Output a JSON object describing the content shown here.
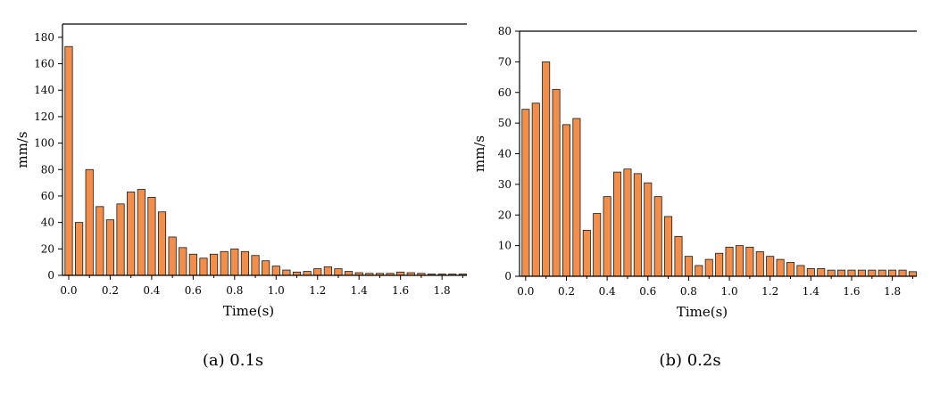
{
  "captions": [
    "(a) 0.1s",
    "(b) 0.2s"
  ],
  "colors": {
    "bar_fill": "#F28E49",
    "bar_stroke": "#1a1a1a",
    "axis": "#000000"
  },
  "chart_data": [
    {
      "type": "bar",
      "xlabel": "Time(s)",
      "ylabel": "mm/s",
      "ylim": [
        0,
        190
      ],
      "xlim": [
        -0.03,
        1.92
      ],
      "yticks": [
        0,
        20,
        40,
        60,
        80,
        100,
        120,
        140,
        160,
        180
      ],
      "xticks": [
        "0.0",
        "0.2",
        "0.4",
        "0.6",
        "0.8",
        "1.0",
        "1.2",
        "1.4",
        "1.6",
        "1.8"
      ],
      "bar_width": 0.036,
      "x": [
        0.0,
        0.05,
        0.1,
        0.15,
        0.2,
        0.25,
        0.3,
        0.35,
        0.4,
        0.45,
        0.5,
        0.55,
        0.6,
        0.65,
        0.7,
        0.75,
        0.8,
        0.85,
        0.9,
        0.95,
        1.0,
        1.05,
        1.1,
        1.15,
        1.2,
        1.25,
        1.3,
        1.35,
        1.4,
        1.45,
        1.5,
        1.55,
        1.6,
        1.65,
        1.7,
        1.75,
        1.8,
        1.85,
        1.9
      ],
      "values": [
        173,
        40,
        80,
        52,
        42,
        54,
        63,
        65,
        59,
        48,
        29,
        21,
        16,
        13,
        16,
        18,
        20,
        18,
        15,
        11,
        7,
        4,
        2.5,
        3,
        5,
        6.5,
        5,
        3,
        2,
        1.5,
        1.5,
        1.5,
        2.5,
        2,
        1.5,
        1,
        1,
        1,
        1
      ]
    },
    {
      "type": "bar",
      "xlabel": "Time(s)",
      "ylabel": "mm/s",
      "ylim": [
        0,
        80
      ],
      "xlim": [
        -0.03,
        1.92
      ],
      "yticks": [
        0,
        10,
        20,
        30,
        40,
        50,
        60,
        70,
        80
      ],
      "xticks": [
        "0.0",
        "0.2",
        "0.4",
        "0.6",
        "0.8",
        "1.0",
        "1.2",
        "1.4",
        "1.6",
        "1.8"
      ],
      "bar_width": 0.036,
      "x": [
        0.0,
        0.05,
        0.1,
        0.15,
        0.2,
        0.25,
        0.3,
        0.35,
        0.4,
        0.45,
        0.5,
        0.55,
        0.6,
        0.65,
        0.7,
        0.75,
        0.8,
        0.85,
        0.9,
        0.95,
        1.0,
        1.05,
        1.1,
        1.15,
        1.2,
        1.25,
        1.3,
        1.35,
        1.4,
        1.45,
        1.5,
        1.55,
        1.6,
        1.65,
        1.7,
        1.75,
        1.8,
        1.85,
        1.9
      ],
      "values": [
        54.5,
        56.5,
        70,
        61,
        49.5,
        51.5,
        15,
        20.5,
        26,
        34,
        35,
        33.5,
        30.5,
        26,
        19.5,
        13,
        6.5,
        3.5,
        5.5,
        7.5,
        9.5,
        10,
        9.5,
        8,
        6.5,
        5.5,
        4.5,
        3.5,
        2.5,
        2.5,
        2,
        2,
        2,
        2,
        2,
        2,
        2,
        2,
        1.5
      ]
    }
  ]
}
